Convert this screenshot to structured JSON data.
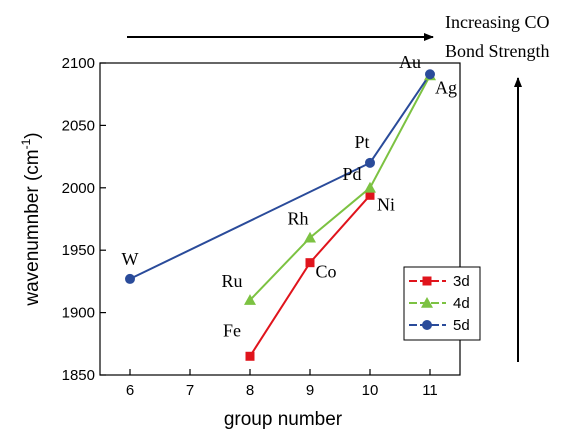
{
  "chart_data": {
    "type": "line",
    "xlabel": "group number",
    "ylabel": "wavenumnber (cm",
    "ylabel_sup": "-1",
    "ylabel_close": ")",
    "xlim": [
      5.5,
      11.5
    ],
    "ylim": [
      1850,
      2100
    ],
    "xticks": [
      6,
      7,
      8,
      9,
      10,
      11
    ],
    "yticks": [
      1850,
      1900,
      1950,
      2000,
      2050,
      2100
    ],
    "grid": false,
    "legend_position": "bottom-right",
    "series": [
      {
        "name": "3d",
        "color": "#e0141c",
        "marker": "square",
        "points": [
          {
            "x": 8,
            "y": 1865,
            "label": "Fe"
          },
          {
            "x": 9,
            "y": 1940,
            "label": "Co"
          },
          {
            "x": 10,
            "y": 1994,
            "label": "Ni"
          }
        ]
      },
      {
        "name": "4d",
        "color": "#7cc242",
        "marker": "triangle",
        "points": [
          {
            "x": 8,
            "y": 1910,
            "label": "Ru"
          },
          {
            "x": 9,
            "y": 1960,
            "label": "Rh"
          },
          {
            "x": 10,
            "y": 2000,
            "label": "Pd"
          },
          {
            "x": 11,
            "y": 2090,
            "label": "Ag"
          }
        ]
      },
      {
        "name": "5d",
        "color": "#2a4b9a",
        "marker": "circle",
        "points": [
          {
            "x": 6,
            "y": 1927,
            "label": "W"
          },
          {
            "x": 10,
            "y": 2020,
            "label": "Pt"
          },
          {
            "x": 11,
            "y": 2091,
            "label": "Au"
          }
        ]
      }
    ],
    "annotation": {
      "line1": "Increasing CO",
      "line2": "Bond Strength"
    }
  }
}
